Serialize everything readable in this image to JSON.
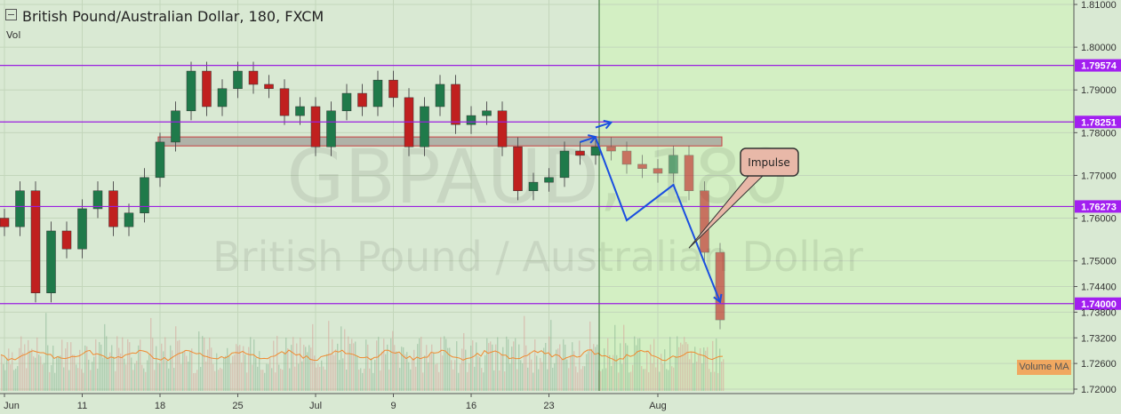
{
  "header": {
    "title": "British Pound/Australian Dollar, 180, FXCM",
    "indicator": "Vol",
    "volume_ma_label": "Volume MA"
  },
  "watermark": {
    "symbol": "GBPAUD, 180",
    "description": "British Pound / Australian Dollar"
  },
  "colors": {
    "up": "#1f7a4a",
    "down": "#c0201f",
    "level_line": "#9a1fe0",
    "level_label_bg": "#a21ff0",
    "arrow": "#1a4fe0",
    "zone": "#a8a8a0",
    "zone_border": "#c84040",
    "bg_past": "#d9e9d3",
    "bg_future": "#d3efc3",
    "volume_ma": "#f08a30"
  },
  "chart_data": {
    "type": "candlestick",
    "title": "British Pound/Australian Dollar, 180, FXCM",
    "x": [
      "Jun 4",
      "Jun 5",
      "Jun 6",
      "Jun 7",
      "Jun 8",
      "Jun 11",
      "Jun 12",
      "Jun 13",
      "Jun 14",
      "Jun 15",
      "Jun 18",
      "Jun 19",
      "Jun 20",
      "Jun 21",
      "Jun 22",
      "Jun 25",
      "Jun 26",
      "Jun 27",
      "Jun 28",
      "Jun 29",
      "Jul 2",
      "Jul 3",
      "Jul 4",
      "Jul 5",
      "Jul 6",
      "Jul 9",
      "Jul 10",
      "Jul 11",
      "Jul 12",
      "Jul 13",
      "Jul 16",
      "Jul 17",
      "Jul 18",
      "Jul 19",
      "Jul 20",
      "Jul 23",
      "Jul 24",
      "Jul 25",
      "Jul 26",
      "Jul 27",
      "Jul 30",
      "Jul 31",
      "Aug 1",
      "Aug 2",
      "Aug 3",
      "Aug 6",
      "Aug 7"
    ],
    "close": [
      1.758,
      1.7664,
      1.7425,
      1.757,
      1.7528,
      1.7622,
      1.7664,
      1.758,
      1.7612,
      1.7695,
      1.7778,
      1.7851,
      1.7944,
      1.7861,
      1.7903,
      1.7944,
      1.7913,
      1.7903,
      1.784,
      1.7861,
      1.7767,
      1.7851,
      1.7892,
      1.7861,
      1.7923,
      1.7882,
      1.7767,
      1.7861,
      1.7913,
      1.7819,
      1.784,
      1.7851,
      1.7767,
      1.7664,
      1.7684,
      1.7695,
      1.7757,
      1.7747,
      1.7767,
      1.7757,
      1.7726,
      1.7716,
      1.7705,
      1.7747,
      1.7664,
      1.752,
      1.7362
    ],
    "x_ticks": [
      {
        "label": "Jun",
        "date": "Jun 4"
      },
      {
        "label": "11",
        "date": "Jun 11"
      },
      {
        "label": "18",
        "date": "Jun 18"
      },
      {
        "label": "25",
        "date": "Jun 25"
      },
      {
        "label": "Jul",
        "date": "Jul 2"
      },
      {
        "label": "9",
        "date": "Jul 9"
      },
      {
        "label": "16",
        "date": "Jul 16"
      },
      {
        "label": "23",
        "date": "Jul 23"
      },
      {
        "label": "Aug",
        "date": "Aug 1"
      }
    ],
    "y_ticks": [
      "1.81000",
      "1.80000",
      "1.79000",
      "1.78000",
      "1.77000",
      "1.76000",
      "1.75000",
      "1.74400",
      "1.73800",
      "1.73200",
      "1.72600",
      "1.72000"
    ],
    "ylim": [
      1.72,
      1.81
    ],
    "grid": true,
    "levels": [
      "1.79574",
      "1.78251",
      "1.76273",
      "1.74000"
    ],
    "zone": {
      "from_date": "Jun 18",
      "to_date": "Aug 7",
      "low": 1.7769,
      "high": 1.779
    },
    "divider_date": "Jul 26",
    "arrows": [
      {
        "points": [
          [
            "Jul 26",
            1.7788
          ],
          [
            "Jul 30",
            1.7595
          ],
          [
            "Aug 2",
            1.7678
          ],
          [
            "Aug 7",
            1.7404
          ]
        ]
      },
      {
        "points": [
          [
            "Jul 26",
            1.7812
          ],
          [
            "Jul 27",
            1.7824
          ]
        ]
      },
      {
        "points": [
          [
            "Jul 25",
            1.7778
          ],
          [
            "Jul 26",
            1.779
          ]
        ]
      }
    ],
    "callout": {
      "text": "Impulse",
      "date": "Aug 3",
      "price": 1.753
    }
  }
}
